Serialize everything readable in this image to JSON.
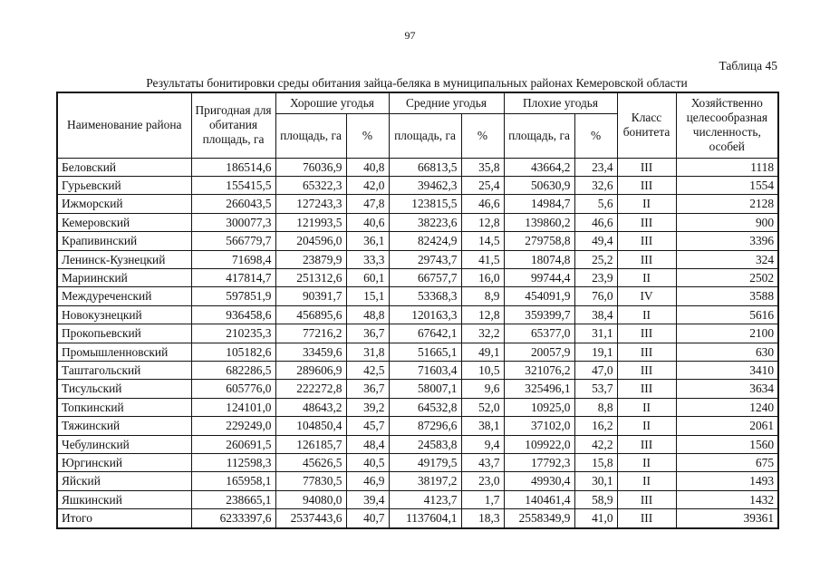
{
  "page": {
    "number": "97",
    "table_label": "Таблица 45",
    "title": "Результаты бонитировки среды обитания зайца-беляка в муниципальных районах Кемеровской области"
  },
  "table": {
    "header": {
      "district": "Наименование района",
      "suitable_area": "Пригодная для обитания площадь, га",
      "groups": [
        {
          "label": "Хорошие угодья"
        },
        {
          "label": "Средние угодья"
        },
        {
          "label": "Плохие угодья"
        }
      ],
      "sub_area": "площадь, га",
      "sub_percent": "%",
      "bonitet_class": "Класс бонитета",
      "optimal_number": "Хозяйственно целесообразная численность, особей"
    },
    "rows": [
      [
        "Беловский",
        "186514,6",
        "76036,9",
        "40,8",
        "66813,5",
        "35,8",
        "43664,2",
        "23,4",
        "III",
        "1118"
      ],
      [
        "Гурьевский",
        "155415,5",
        "65322,3",
        "42,0",
        "39462,3",
        "25,4",
        "50630,9",
        "32,6",
        "III",
        "1554"
      ],
      [
        "Ижморский",
        "266043,5",
        "127243,3",
        "47,8",
        "123815,5",
        "46,6",
        "14984,7",
        "5,6",
        "II",
        "2128"
      ],
      [
        "Кемеровский",
        "300077,3",
        "121993,5",
        "40,6",
        "38223,6",
        "12,8",
        "139860,2",
        "46,6",
        "III",
        "900"
      ],
      [
        "Крапивинский",
        "566779,7",
        "204596,0",
        "36,1",
        "82424,9",
        "14,5",
        "279758,8",
        "49,4",
        "III",
        "3396"
      ],
      [
        "Ленинск-Кузнецкий",
        "71698,4",
        "23879,9",
        "33,3",
        "29743,7",
        "41,5",
        "18074,8",
        "25,2",
        "III",
        "324"
      ],
      [
        "Мариинский",
        "417814,7",
        "251312,6",
        "60,1",
        "66757,7",
        "16,0",
        "99744,4",
        "23,9",
        "II",
        "2502"
      ],
      [
        "Междуреченский",
        "597851,9",
        "90391,7",
        "15,1",
        "53368,3",
        "8,9",
        "454091,9",
        "76,0",
        "IV",
        "3588"
      ],
      [
        "Новокузнецкий",
        "936458,6",
        "456895,6",
        "48,8",
        "120163,3",
        "12,8",
        "359399,7",
        "38,4",
        "II",
        "5616"
      ],
      [
        "Прокопьевский",
        "210235,3",
        "77216,2",
        "36,7",
        "67642,1",
        "32,2",
        "65377,0",
        "31,1",
        "III",
        "2100"
      ],
      [
        "Промышленновский",
        "105182,6",
        "33459,6",
        "31,8",
        "51665,1",
        "49,1",
        "20057,9",
        "19,1",
        "III",
        "630"
      ],
      [
        "Таштагольский",
        "682286,5",
        "289606,9",
        "42,5",
        "71603,4",
        "10,5",
        "321076,2",
        "47,0",
        "III",
        "3410"
      ],
      [
        "Тисульский",
        "605776,0",
        "222272,8",
        "36,7",
        "58007,1",
        "9,6",
        "325496,1",
        "53,7",
        "III",
        "3634"
      ],
      [
        "Топкинский",
        "124101,0",
        "48643,2",
        "39,2",
        "64532,8",
        "52,0",
        "10925,0",
        "8,8",
        "II",
        "1240"
      ],
      [
        "Тяжинский",
        "229249,0",
        "104850,4",
        "45,7",
        "87296,6",
        "38,1",
        "37102,0",
        "16,2",
        "II",
        "2061"
      ],
      [
        "Чебулинский",
        "260691,5",
        "126185,7",
        "48,4",
        "24583,8",
        "9,4",
        "109922,0",
        "42,2",
        "III",
        "1560"
      ],
      [
        "Юргинский",
        "112598,3",
        "45626,5",
        "40,5",
        "49179,5",
        "43,7",
        "17792,3",
        "15,8",
        "II",
        "675"
      ],
      [
        "Яйский",
        "165958,1",
        "77830,5",
        "46,9",
        "38197,2",
        "23,0",
        "49930,4",
        "30,1",
        "II",
        "1493"
      ],
      [
        "Яшкинский",
        "238665,1",
        "94080,0",
        "39,4",
        "4123,7",
        "1,7",
        "140461,4",
        "58,9",
        "III",
        "1432"
      ]
    ],
    "total_row": [
      "Итого",
      "6233397,6",
      "2537443,6",
      "40,7",
      "1137604,1",
      "18,3",
      "2558349,9",
      "41,0",
      "III",
      "39361"
    ]
  }
}
